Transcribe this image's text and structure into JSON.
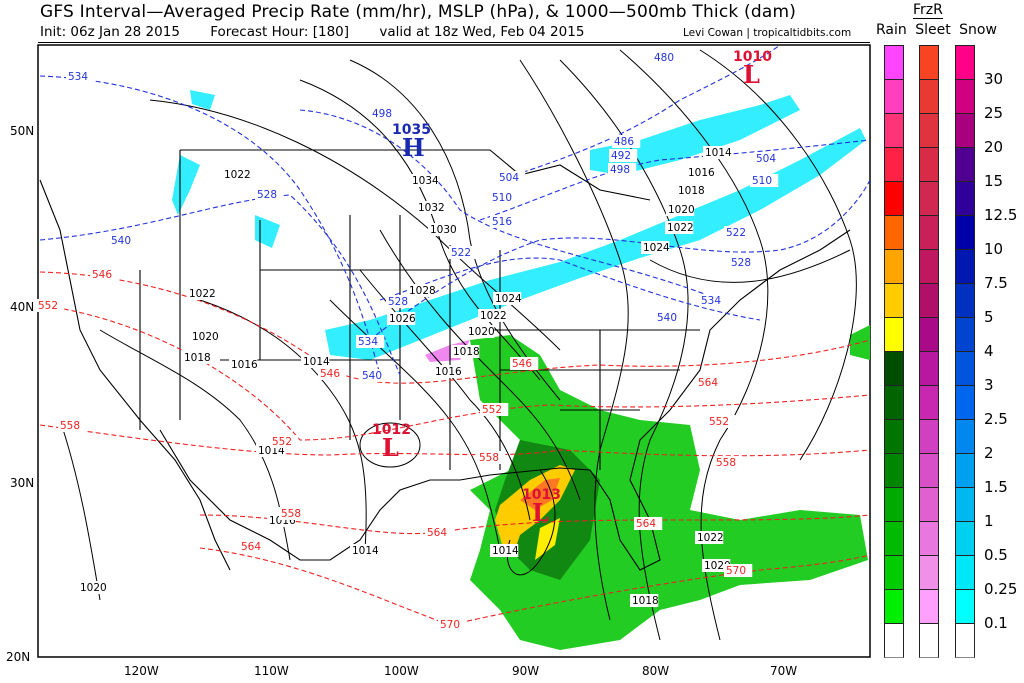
{
  "header": {
    "title": "GFS Interval—Averaged Precip Rate (mm/hr), MSLP (hPa), & 1000—500mb Thick (dam)",
    "init": "Init: 06z Jan 28 2015",
    "forecast_hour": "Forecast Hour: [180]",
    "valid": "valid at 18z Wed, Feb 04 2015",
    "credit": "Levi Cowan | tropicaltidbits.com"
  },
  "legend": {
    "frzr_label": "FrzR",
    "types": [
      "Rain",
      "Sleet",
      "Snow"
    ],
    "levels": [
      "30",
      "25",
      "20",
      "15",
      "12.5",
      "10",
      "7.5",
      "5",
      "4",
      "3",
      "2.5",
      "2",
      "1.5",
      "1",
      "0.5",
      "0.25",
      "0.1"
    ],
    "rain_colors": [
      "#ff44ff",
      "#ff3fbf",
      "#ff3377",
      "#ff2244",
      "#ff0000",
      "#ff6600",
      "#ffa500",
      "#ffcc00",
      "#ffff00",
      "#004d00",
      "#006400",
      "#007500",
      "#008600",
      "#00aa00",
      "#00bb00",
      "#00cc00",
      "#00ee00",
      "#ffffff"
    ],
    "sleet_colors": [
      "#f84422",
      "#e83a33",
      "#e03340",
      "#d82b48",
      "#d02850",
      "#c82058",
      "#c01860",
      "#b0106a",
      "#a80a88",
      "#b818a0",
      "#c828b0",
      "#d040c0",
      "#d850c8",
      "#e060d0",
      "#e878e0",
      "#f090e8",
      "#ffa0ff",
      "#ffffff"
    ],
    "snow_colors": [
      "#ff0088",
      "#d00080",
      "#a8007f",
      "#500090",
      "#30009a",
      "#0000a8",
      "#0018b0",
      "#0030c0",
      "#0044d0",
      "#0055dd",
      "#0066ee",
      "#0088f0",
      "#00a0f0",
      "#00b8f0",
      "#00d0f0",
      "#00e8f8",
      "#00ffff",
      "#ffffff"
    ]
  },
  "axes": {
    "lat_labels": [
      "50N",
      "40N",
      "30N",
      "20N"
    ],
    "lon_labels": [
      "120W",
      "110W",
      "100W",
      "90W",
      "80W",
      "70W"
    ]
  },
  "pressure_centers": [
    {
      "type": "H",
      "value": "1035",
      "color": "#1a2ab0"
    },
    {
      "type": "L",
      "value": "1012",
      "color": "#dd1133"
    },
    {
      "type": "L",
      "value": "1013",
      "color": "#dd1133"
    },
    {
      "type": "L",
      "value": "1010",
      "color": "#dd1133"
    }
  ],
  "isobar_labels": [
    "1022",
    "1034",
    "1032",
    "1030",
    "1028",
    "1026",
    "1024",
    "1022",
    "1020",
    "1018",
    "1016",
    "1022",
    "1020",
    "1018",
    "1016",
    "1014",
    "1014",
    "1016",
    "1014",
    "1020",
    "1014",
    "1018",
    "1020",
    "1022",
    "1024",
    "1022",
    "1020",
    "1018",
    "1016",
    "1014"
  ],
  "thickness_warm_labels": [
    "546",
    "552",
    "558",
    "546",
    "552",
    "552",
    "546",
    "558",
    "564",
    "558",
    "564",
    "570",
    "552",
    "558",
    "564",
    "570",
    "564"
  ],
  "thickness_cold_labels": [
    "534",
    "498",
    "528",
    "540",
    "522",
    "528",
    "534",
    "540",
    "516",
    "510",
    "504",
    "498",
    "492",
    "486",
    "480",
    "504",
    "510",
    "522",
    "528",
    "534",
    "540"
  ],
  "colors": {
    "isobar": "#000000",
    "thickness_warm": "#ee2222",
    "thickness_cold": "#2233dd"
  }
}
